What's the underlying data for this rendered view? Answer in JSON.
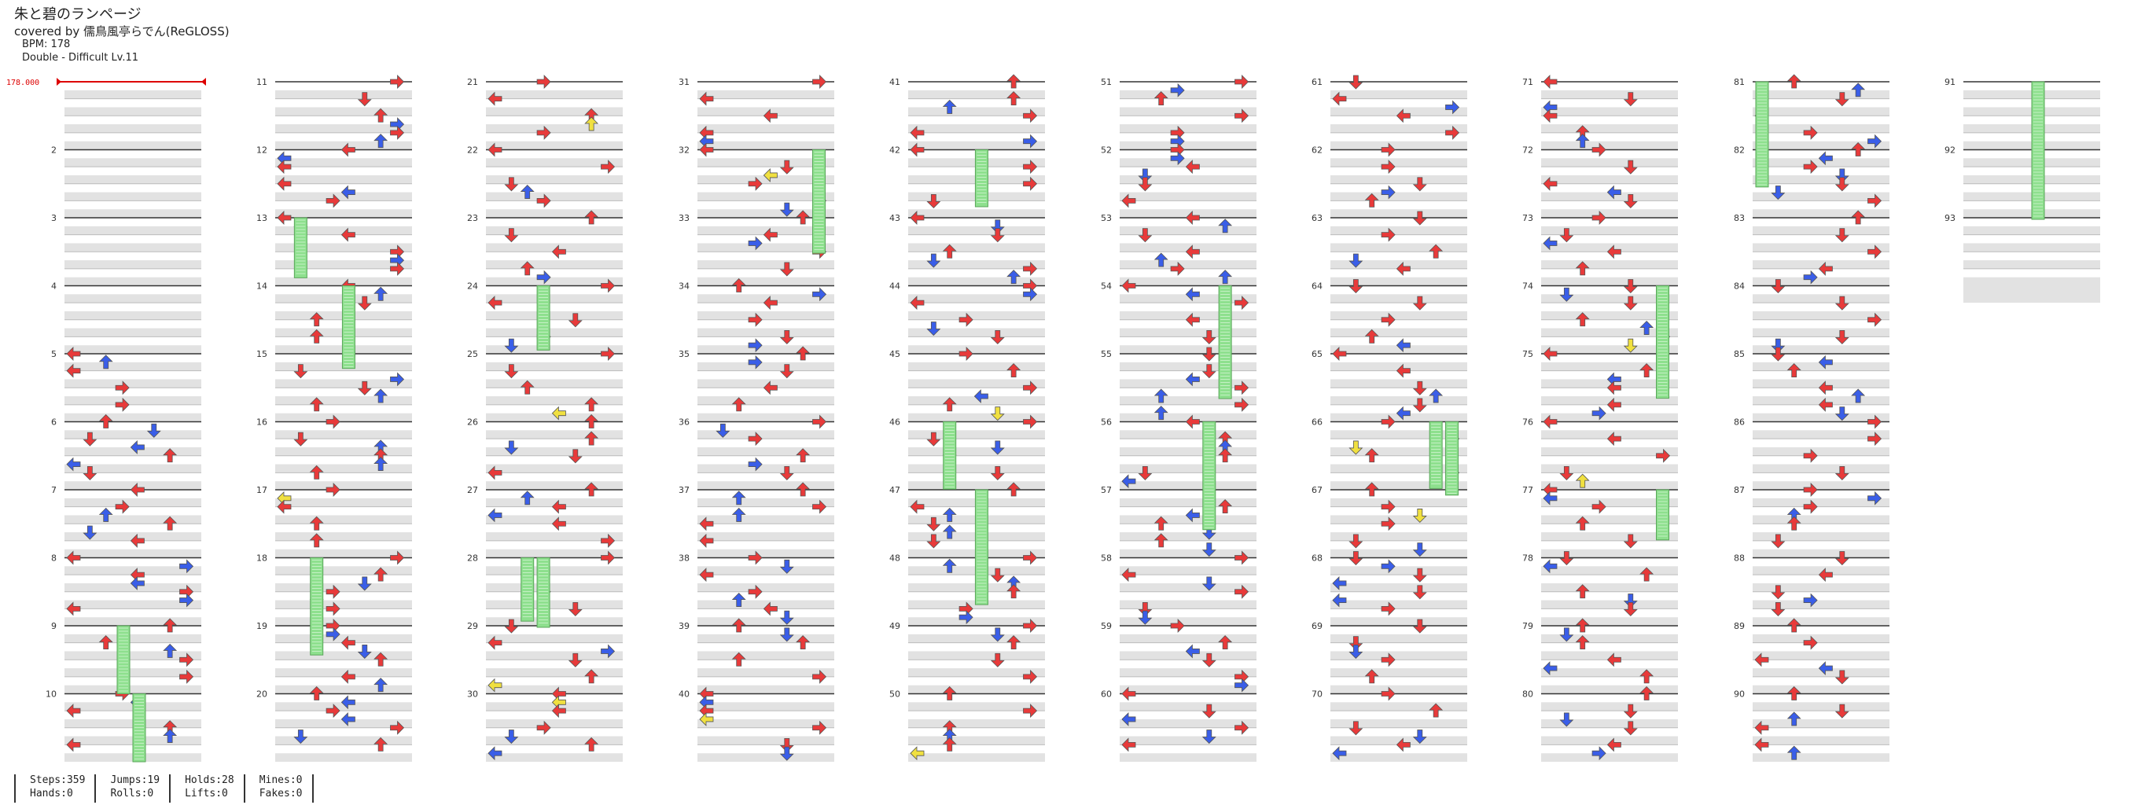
{
  "song": {
    "title": "朱と碧のランページ",
    "credit": "covered by 儒鳥風亭らでん(ReGLOSS)",
    "bpm_label": "BPM: 178",
    "difficulty_label": "Double - Difficult Lv.11"
  },
  "bpm_marker": "178.000",
  "measure_labels": [
    "2",
    "3",
    "4",
    "5",
    "6",
    "7",
    "8",
    "9",
    "10",
    "11",
    "12",
    "13",
    "14",
    "15",
    "16",
    "17",
    "18",
    "19",
    "20",
    "21",
    "22",
    "23",
    "24",
    "25",
    "26",
    "27",
    "28",
    "29",
    "30",
    "31",
    "32",
    "33",
    "34",
    "35",
    "36",
    "37",
    "38",
    "39",
    "40",
    "41",
    "42",
    "43",
    "44",
    "45",
    "46",
    "47",
    "48",
    "49",
    "50",
    "51",
    "52",
    "53",
    "54",
    "55",
    "56",
    "57",
    "58",
    "59",
    "60",
    "61",
    "62",
    "63",
    "64",
    "65",
    "66",
    "67",
    "68",
    "69",
    "70",
    "71",
    "72",
    "73",
    "74",
    "75",
    "76",
    "77",
    "78",
    "79",
    "80",
    "81",
    "82",
    "83",
    "84",
    "85",
    "86",
    "87",
    "88",
    "89",
    "90",
    "91",
    "92",
    "93"
  ],
  "stats": {
    "col1": [
      "Steps:359",
      "Hands:0"
    ],
    "col2": [
      "Jumps:19",
      "Rolls:0"
    ],
    "col3": [
      "Holds:28",
      "Lifts:0"
    ],
    "col4": [
      "Mines:0",
      "Fakes:0"
    ]
  },
  "colors": {
    "quarter_arrow": "#e83a3a",
    "eighth_arrow": "#3a5ee8",
    "sixteenth_arrow": "#f0e040",
    "hold_body": "#8ee08e",
    "stripe": "#e2e2e2",
    "bpm_line": "#dd0000"
  },
  "icons": {
    "arrow": "arrow-icon",
    "hold": "hold-note-icon"
  }
}
